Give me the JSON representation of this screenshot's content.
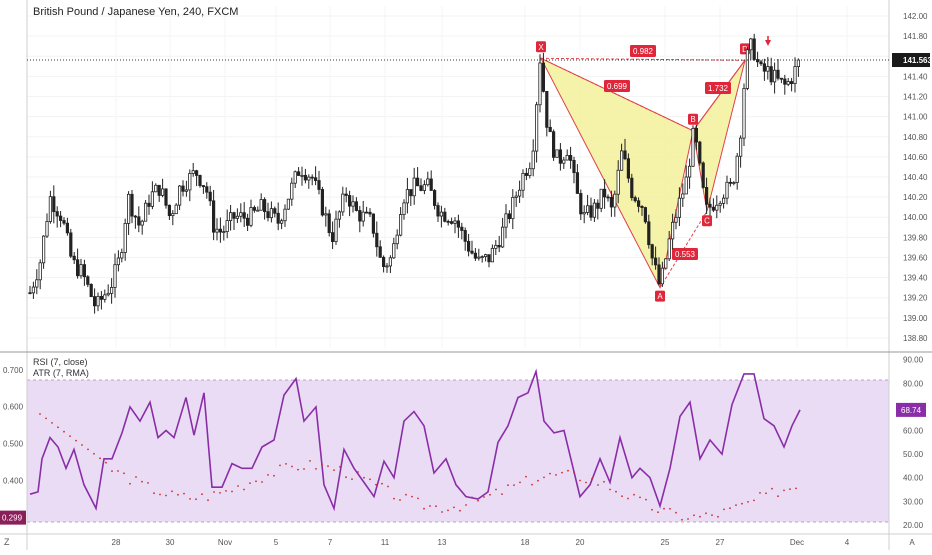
{
  "header": {
    "symbol": "British Pound / Japanese Yen, 240, FXCM"
  },
  "colors": {
    "up": "#1f1f1f",
    "down": "#1f1f1f",
    "pattern_fill": "#f3f19a",
    "pattern_line": "#e0404a",
    "label_bg": "#e0263a",
    "rsi_line": "#8a2ea8",
    "rsi_band": "#e6d6f2",
    "atr_dots": "#d03030",
    "grid": "#eeeeee"
  },
  "price_axis": {
    "ticks": [
      "142.00",
      "141.80",
      "141.60",
      "141.40",
      "141.20",
      "141.00",
      "140.80",
      "140.60",
      "140.40",
      "140.20",
      "140.00",
      "139.80",
      "139.60",
      "139.40",
      "139.20",
      "139.00",
      "138.80"
    ],
    "current_price_label": "141.563"
  },
  "rsi_axis": {
    "ticks": [
      "90.00",
      "80.00",
      "70.00",
      "60.00",
      "50.00",
      "40.00",
      "30.00",
      "20.00"
    ],
    "value_label": "68.74"
  },
  "atr_axis": {
    "ticks": [
      "0.700",
      "0.600",
      "0.500",
      "0.400"
    ],
    "value_label": "0.299"
  },
  "indicator_titles": {
    "rsi": "RSI (7, close)",
    "atr": "ATR (7, RMA)"
  },
  "x_axis": {
    "ticks": [
      "28",
      "30",
      "Nov",
      "5",
      "7",
      "11",
      "13",
      "18",
      "20",
      "25",
      "27",
      "Dec",
      "4",
      "A"
    ],
    "corner_left": "Z"
  },
  "pattern": {
    "points": [
      {
        "label": "X",
        "price": 141.58
      },
      {
        "label": "A",
        "price": 139.3
      },
      {
        "label": "B",
        "price": 140.86
      },
      {
        "label": "C",
        "price": 140.06
      },
      {
        "label": "D",
        "price": 141.56
      }
    ],
    "ratios": [
      "0.982",
      "0.699",
      "1.732",
      "0.553"
    ]
  },
  "chart_data": [
    {
      "type": "candlestick",
      "title": "British Pound / Japanese Yen, 240, FXCM",
      "ylim": [
        138.7,
        142.1
      ],
      "pattern_points": [
        {
          "label": "X",
          "price": 141.58
        },
        {
          "label": "A",
          "price": 139.3
        },
        {
          "label": "B",
          "price": 140.86
        },
        {
          "label": "C",
          "price": 140.06
        },
        {
          "label": "D",
          "price": 141.56
        }
      ],
      "last_price": 141.563
    },
    {
      "type": "line",
      "series": [
        {
          "name": "RSI (7, close)",
          "last_value": 68.74
        },
        {
          "name": "ATR (7, RMA)",
          "last_value": 0.299
        }
      ],
      "rsi_band": [
        20,
        80
      ],
      "ylim_rsi": [
        17,
        92
      ],
      "ylim_atr": [
        0.26,
        0.74
      ]
    }
  ]
}
